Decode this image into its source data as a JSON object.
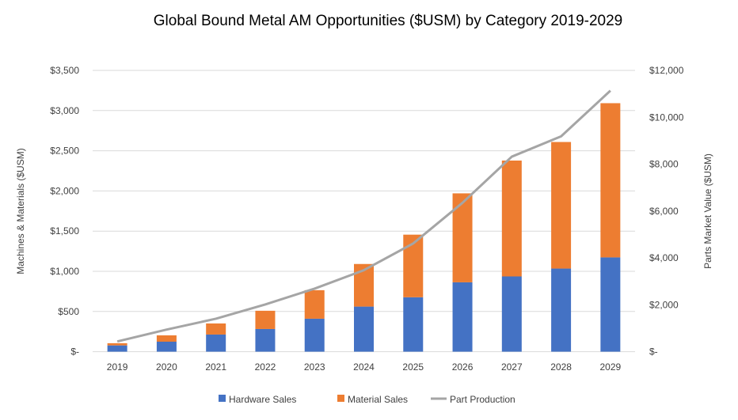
{
  "chart_data": {
    "type": "bar",
    "stacked": true,
    "title": "Global Bound Metal AM Opportunities ($USM) by Category 2019-2029",
    "xlabel": "",
    "ylabel": "Machines & Materials ($USM)",
    "y2label": "Parts Market Value ($USM)",
    "categories": [
      "2019",
      "2020",
      "2021",
      "2022",
      "2023",
      "2024",
      "2025",
      "2026",
      "2027",
      "2028",
      "2029"
    ],
    "ylim": [
      0,
      3500
    ],
    "y2lim": [
      0,
      12000
    ],
    "yticks": [
      0,
      500,
      1000,
      1500,
      2000,
      2500,
      3000,
      3500
    ],
    "ytick_labels": [
      "$-",
      "$500",
      "$1,000",
      "$1,500",
      "$2,000",
      "$2,500",
      "$3,000",
      "$3,500"
    ],
    "y2ticks": [
      0,
      2000,
      4000,
      6000,
      8000,
      10000,
      12000
    ],
    "y2tick_labels": [
      "$-",
      "$2,000",
      "$4,000",
      "$6,000",
      "$8,000",
      "$10,000",
      "$12,000"
    ],
    "grid": true,
    "legend_position": "bottom",
    "series": [
      {
        "name": "Hardware Sales",
        "type": "bar",
        "axis": "left",
        "color": "#4472C4",
        "values": [
          78,
          124,
          213,
          282,
          410,
          561,
          677,
          863,
          936,
          1034,
          1173
        ]
      },
      {
        "name": "Material Sales",
        "type": "bar",
        "axis": "left",
        "color": "#ED7D31",
        "values": [
          27,
          79,
          138,
          227,
          355,
          530,
          779,
          1107,
          1442,
          1575,
          1919
        ]
      },
      {
        "name": "Part Production",
        "type": "line",
        "axis": "right",
        "color": "#A5A5A5",
        "values": [
          436,
          943,
          1405,
          2014,
          2689,
          3476,
          4615,
          6350,
          8320,
          9186,
          11135
        ]
      }
    ]
  }
}
